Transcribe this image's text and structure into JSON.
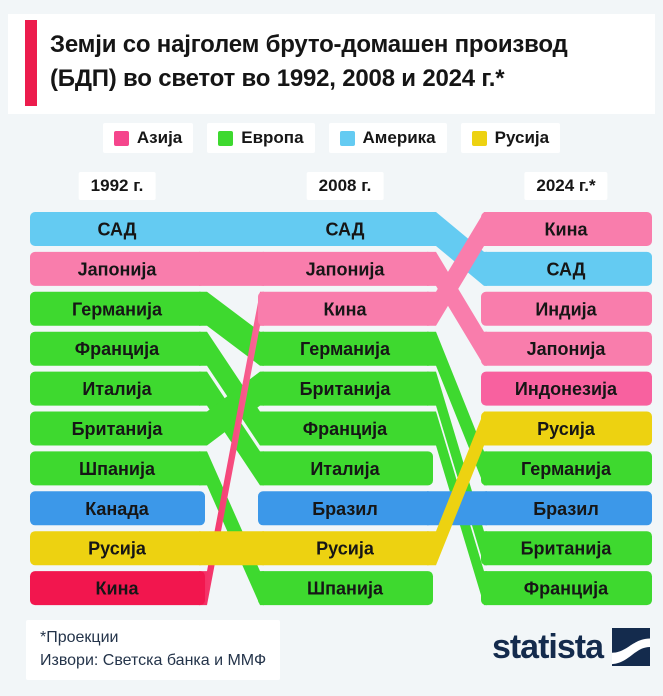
{
  "title": {
    "line1": "Земји со најголем бруто-домашен производ",
    "line2": "(БДП) во светот во 1992, 2008 и 2024 г.*"
  },
  "legend": [
    {
      "label": "Азија",
      "color": "#f5458c"
    },
    {
      "label": "Европа",
      "color": "#3ed92f"
    },
    {
      "label": "Америка",
      "color": "#64cbf2"
    },
    {
      "label": "Русија",
      "color": "#edd211"
    }
  ],
  "columns": [
    "1992 г.",
    "2008 г.",
    "2024 г.*"
  ],
  "footer": {
    "note": "*Проекции",
    "sources": "Извори: Светска банка и ММФ",
    "brand": "statista"
  },
  "colors": {
    "accent_red": "#ec1c4d",
    "navy": "#142b4d",
    "asia_pink": "#f97dac",
    "asia_deep_pink": "#f8619f",
    "china_1992_red": "#f2164e",
    "europe_green": "#3ed92f",
    "america_light_blue": "#64cbf2",
    "america_dark_blue": "#3c98e9",
    "russia_yellow": "#edd211",
    "background": "#f2f6f8"
  },
  "chart_data": {
    "type": "bump-ranking",
    "title": "Земји со најголем бруто-домашен производ (БДП) во светот во 1992, 2008 и 2024 г.*",
    "years": [
      "1992 г.",
      "2008 г.",
      "2024 г.*"
    ],
    "rank_range": [
      1,
      10
    ],
    "legend_groups": [
      "Азија",
      "Европа",
      "Америка",
      "Русија"
    ],
    "countries": [
      {
        "name": "САД",
        "group": "Америка",
        "color": "#64cbf2",
        "ranks": [
          1,
          1,
          2
        ]
      },
      {
        "name": "Јапонија",
        "group": "Азија",
        "color": "#f97dac",
        "ranks": [
          2,
          2,
          4
        ]
      },
      {
        "name": "Германија",
        "group": "Европа",
        "color": "#3ed92f",
        "ranks": [
          3,
          4,
          7
        ]
      },
      {
        "name": "Франција",
        "group": "Европа",
        "color": "#3ed92f",
        "ranks": [
          4,
          6,
          10
        ]
      },
      {
        "name": "Италија",
        "group": "Европа",
        "color": "#3ed92f",
        "ranks": [
          5,
          7,
          null
        ]
      },
      {
        "name": "Британија",
        "group": "Европа",
        "color": "#3ed92f",
        "ranks": [
          6,
          5,
          9
        ]
      },
      {
        "name": "Шпанија",
        "group": "Европа",
        "color": "#3ed92f",
        "ranks": [
          7,
          10,
          null
        ]
      },
      {
        "name": "Канада",
        "group": "Америка",
        "color": "#3c98e9",
        "ranks": [
          8,
          null,
          null
        ]
      },
      {
        "name": "Русија",
        "group": "Русија",
        "color": "#edd211",
        "ranks": [
          9,
          9,
          6
        ]
      },
      {
        "name": "Кина",
        "group": "Азија",
        "color": "#f97dac",
        "color_1992": "#f2164e",
        "ranks": [
          10,
          3,
          1
        ]
      },
      {
        "name": "Бразил",
        "group": "Америка",
        "color": "#3c98e9",
        "ranks": [
          null,
          8,
          8
        ]
      },
      {
        "name": "Индија",
        "group": "Азија",
        "color": "#f97dac",
        "ranks": [
          null,
          null,
          3
        ]
      },
      {
        "name": "Индонезија",
        "group": "Азија",
        "color": "#f8619f",
        "ranks": [
          null,
          null,
          5
        ]
      }
    ]
  }
}
